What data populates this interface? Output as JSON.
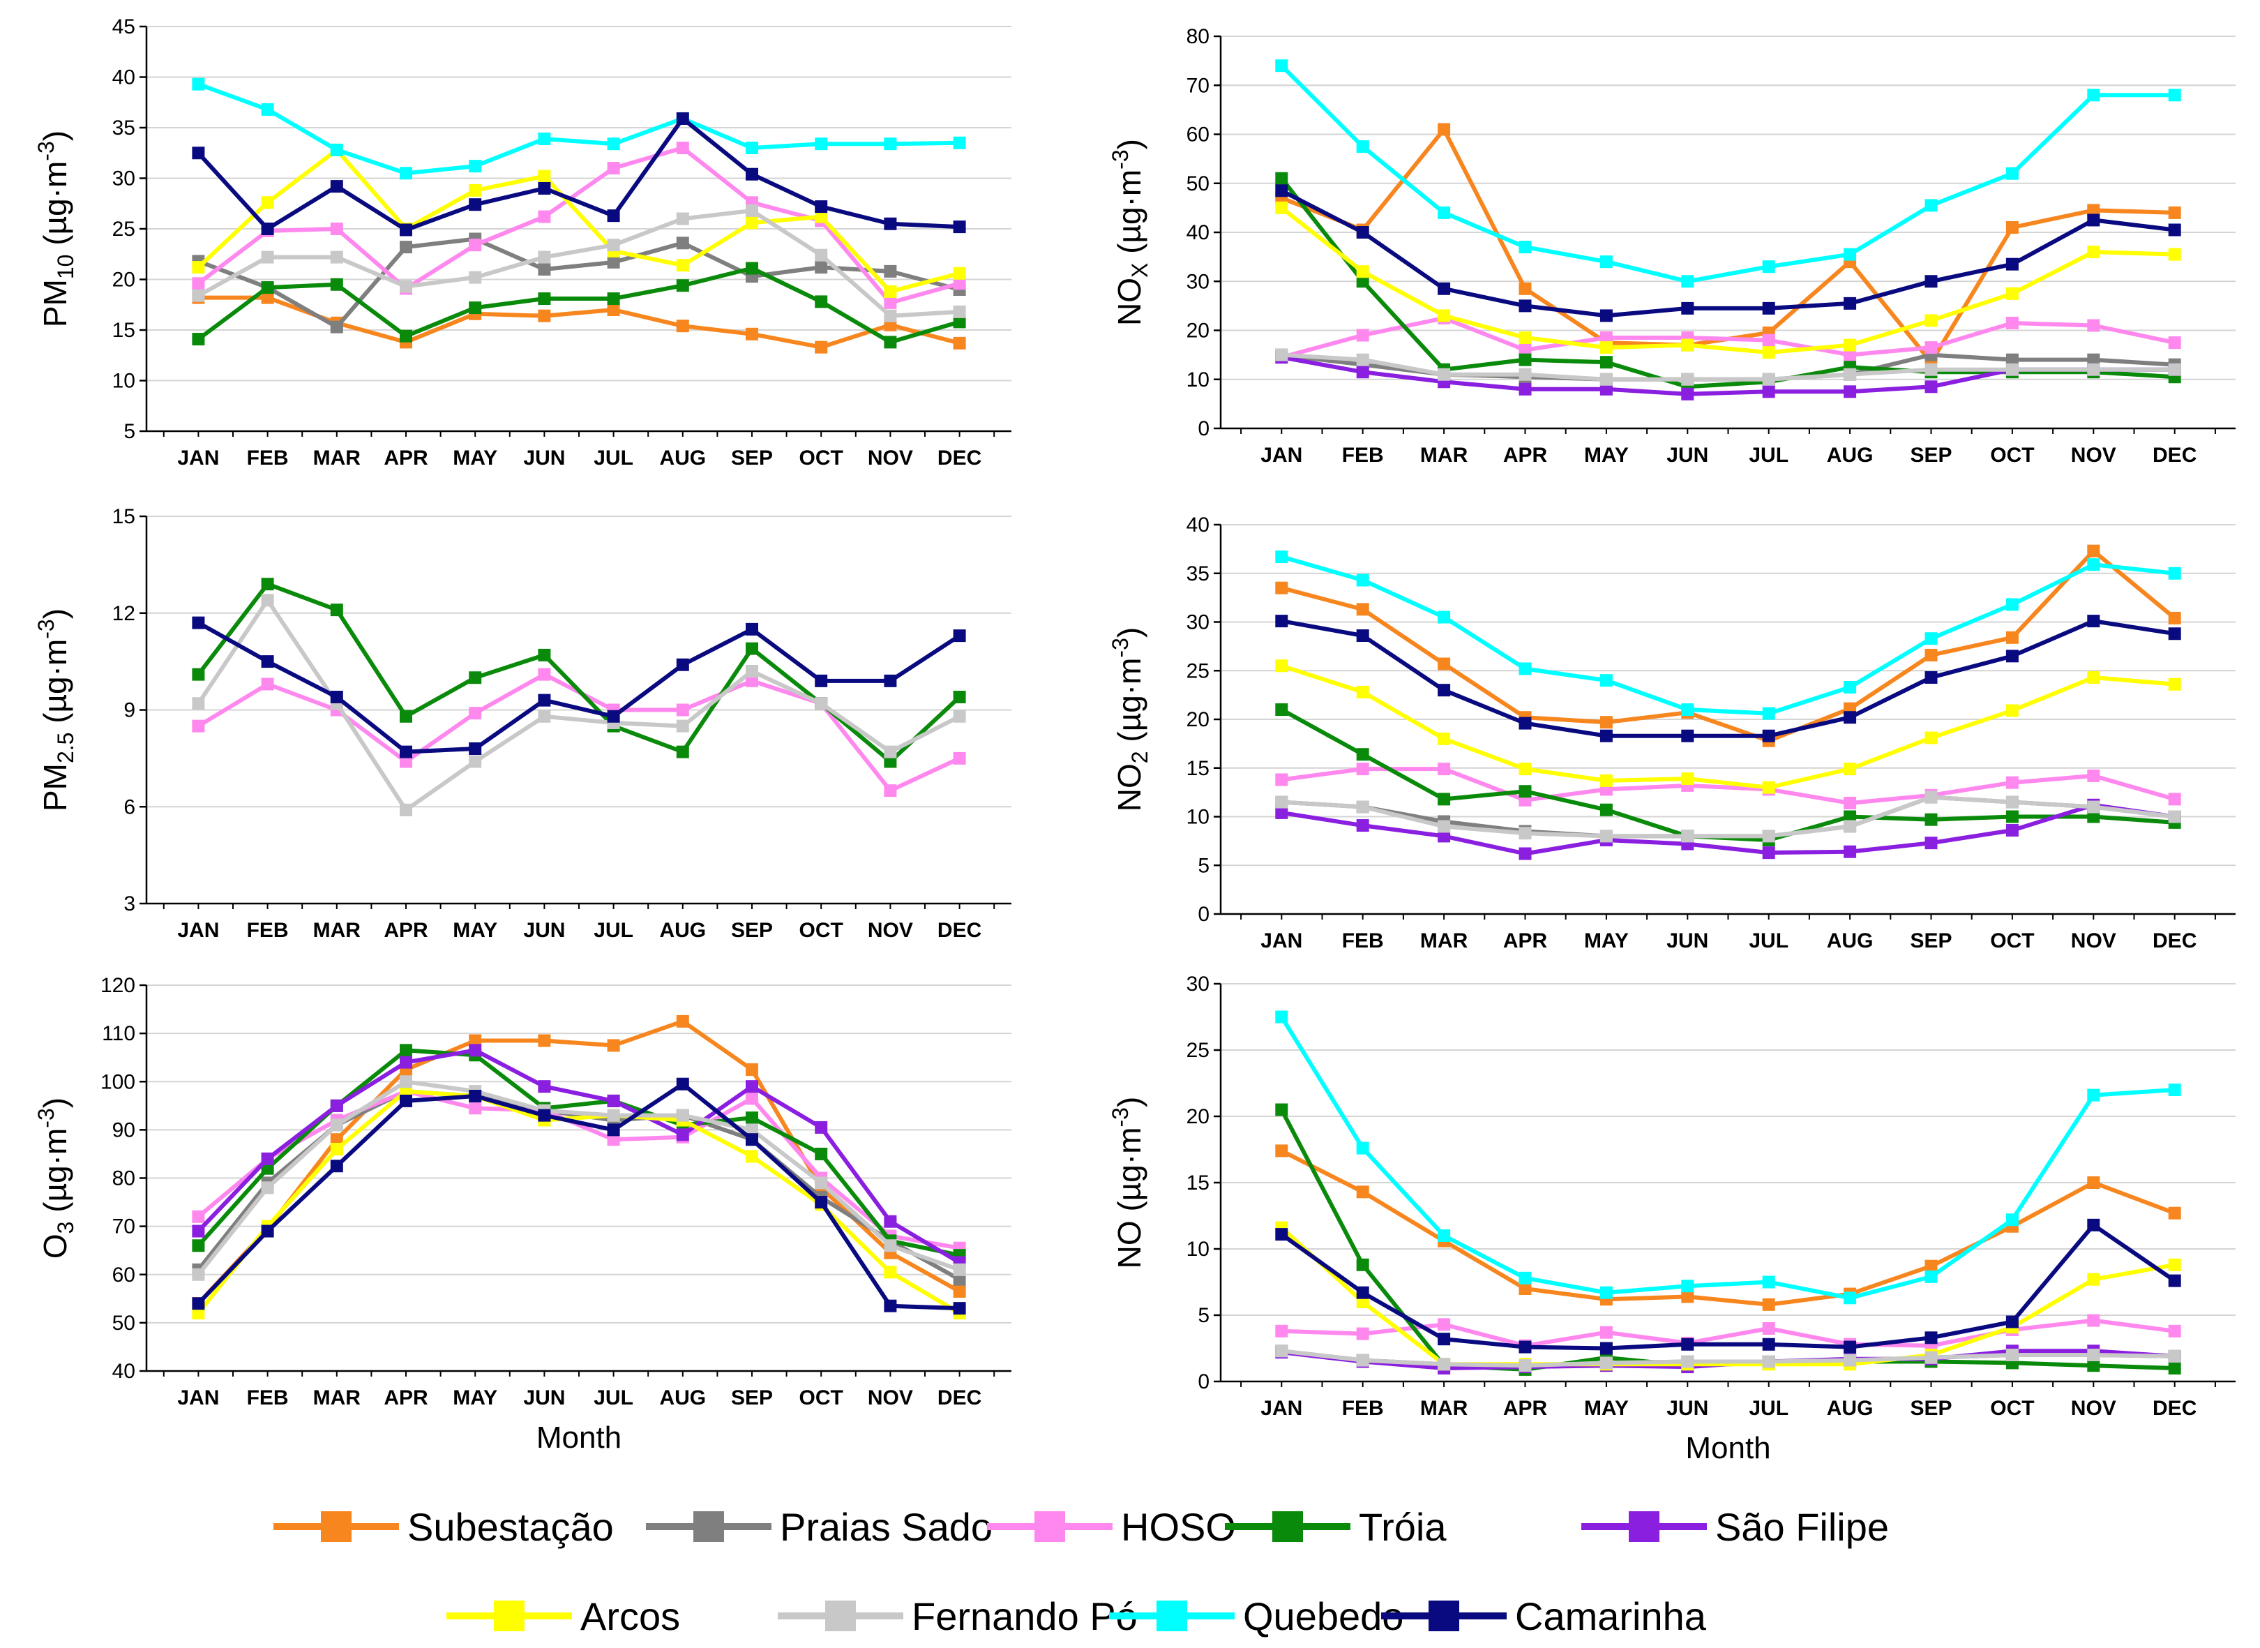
{
  "series_styles": [
    {
      "name": "Subestação",
      "color": "#F7861E"
    },
    {
      "name": "Praias Sado",
      "color": "#7F7F7F"
    },
    {
      "name": "HOSO",
      "color": "#FF88EE"
    },
    {
      "name": "Tróia",
      "color": "#0A8A0A"
    },
    {
      "name": "São Filipe",
      "color": "#8A1FE0"
    },
    {
      "name": "Arcos",
      "color": "#FFFF00"
    },
    {
      "name": "Fernando Pó",
      "color": "#C8C8C8"
    },
    {
      "name": "Quebedo",
      "color": "#00FFFF"
    },
    {
      "name": "Camarinha",
      "color": "#0A0A80"
    }
  ],
  "legend": {
    "items": [
      "Subestação",
      "Praias Sado",
      "HOSO",
      "Tróia",
      "São Filipe",
      "Arcos",
      "Fernando Pó",
      "Quebedo",
      "Camarinha"
    ]
  },
  "chart_data": [
    {
      "id": "pm10",
      "type": "line",
      "ylabel": {
        "main": "PM",
        "sub": "10",
        "unit": " (µg·m",
        "sup": "-3",
        "close": ")"
      },
      "xlabel": "",
      "categories": [
        "JAN",
        "FEB",
        "MAR",
        "APR",
        "MAY",
        "JUN",
        "JUL",
        "AUG",
        "SEP",
        "OCT",
        "NOV",
        "DEC"
      ],
      "ylim": [
        5,
        45
      ],
      "yticks": [
        5,
        10,
        15,
        20,
        25,
        30,
        35,
        40,
        45
      ],
      "series": [
        {
          "name": "Subestação",
          "values": [
            18.2,
            18.2,
            15.7,
            13.8,
            16.6,
            16.4,
            17.0,
            15.4,
            14.6,
            13.3,
            15.5,
            13.7
          ]
        },
        {
          "name": "Praias Sado",
          "values": [
            21.8,
            19.2,
            15.3,
            23.2,
            24.0,
            21.0,
            21.7,
            23.6,
            20.3,
            21.2,
            20.8,
            19.0
          ]
        },
        {
          "name": "HOSO",
          "values": [
            19.6,
            24.8,
            25.0,
            19.1,
            23.4,
            26.2,
            31.0,
            33.0,
            27.6,
            25.8,
            17.7,
            19.6
          ]
        },
        {
          "name": "Tróia",
          "values": [
            14.1,
            19.2,
            19.5,
            14.4,
            17.2,
            18.1,
            18.1,
            19.4,
            21.1,
            17.8,
            13.8,
            15.8
          ]
        },
        {
          "name": "Arcos",
          "values": [
            21.2,
            27.6,
            32.8,
            25.0,
            28.8,
            30.2,
            22.8,
            21.4,
            25.6,
            26.2,
            18.8,
            20.6
          ]
        },
        {
          "name": "Fernando Pó",
          "values": [
            18.4,
            22.2,
            22.2,
            19.3,
            20.2,
            22.2,
            23.4,
            26.0,
            26.8,
            22.4,
            16.4,
            16.8
          ]
        },
        {
          "name": "Quebedo",
          "values": [
            39.3,
            36.8,
            32.8,
            30.5,
            31.2,
            33.9,
            33.4,
            35.9,
            33.0,
            33.4,
            33.4,
            33.5
          ]
        },
        {
          "name": "Camarinha",
          "values": [
            32.5,
            25.0,
            29.2,
            24.9,
            27.4,
            29.0,
            26.3,
            35.9,
            30.4,
            27.2,
            25.5,
            25.2
          ]
        }
      ]
    },
    {
      "id": "nox",
      "type": "line",
      "ylabel": {
        "main": "NO",
        "sub": "X",
        "unit": " (µg·m",
        "sup": "-3",
        "close": ")"
      },
      "xlabel": "",
      "categories": [
        "JAN",
        "FEB",
        "MAR",
        "APR",
        "MAY",
        "JUN",
        "JUL",
        "AUG",
        "SEP",
        "OCT",
        "NOV",
        "DEC"
      ],
      "ylim": [
        0,
        80
      ],
      "yticks": [
        0,
        10,
        20,
        30,
        40,
        50,
        60,
        70,
        80
      ],
      "series": [
        {
          "name": "Subestação",
          "values": [
            47.0,
            40.5,
            61.0,
            28.5,
            17.5,
            17.0,
            19.5,
            34.0,
            13.5,
            41.0,
            44.5,
            44.0
          ]
        },
        {
          "name": "Praias Sado",
          "values": [
            15.0,
            13.0,
            11.0,
            10.5,
            10.0,
            10.0,
            10.0,
            11.0,
            15.0,
            14.0,
            14.0,
            13.0
          ]
        },
        {
          "name": "HOSO",
          "values": [
            14.5,
            19.0,
            22.5,
            16.0,
            18.5,
            18.5,
            18.0,
            15.0,
            16.5,
            21.5,
            21.0,
            17.5
          ]
        },
        {
          "name": "Tróia",
          "values": [
            51.0,
            30.0,
            12.0,
            14.0,
            13.5,
            8.5,
            9.5,
            12.5,
            11.5,
            11.5,
            11.5,
            10.5
          ]
        },
        {
          "name": "São Filipe",
          "values": [
            14.5,
            11.5,
            9.5,
            8.0,
            8.0,
            7.0,
            7.5,
            7.5,
            8.5,
            12.0,
            12.0,
            12.0
          ]
        },
        {
          "name": "Arcos",
          "values": [
            45.0,
            32.0,
            23.0,
            18.5,
            16.5,
            17.0,
            15.5,
            17.0,
            22.0,
            27.5,
            36.0,
            35.5
          ]
        },
        {
          "name": "Fernando Pó",
          "values": [
            15.0,
            14.0,
            11.0,
            11.0,
            10.0,
            10.0,
            10.0,
            11.0,
            12.0,
            12.0,
            12.0,
            12.0
          ]
        },
        {
          "name": "Quebedo",
          "values": [
            74.0,
            57.5,
            44.0,
            37.0,
            34.0,
            30.0,
            33.0,
            35.5,
            45.5,
            52.0,
            68.0,
            68.0
          ]
        },
        {
          "name": "Camarinha",
          "values": [
            48.5,
            40.0,
            28.5,
            25.0,
            23.0,
            24.5,
            24.5,
            25.5,
            30.0,
            33.5,
            42.5,
            40.5
          ]
        }
      ]
    },
    {
      "id": "pm25",
      "type": "line",
      "ylabel": {
        "main": "PM",
        "sub": "2.5",
        "unit": " (µg·m",
        "sup": "-3",
        "close": ")"
      },
      "xlabel": "",
      "categories": [
        "JAN",
        "FEB",
        "MAR",
        "APR",
        "MAY",
        "JUN",
        "JUL",
        "AUG",
        "SEP",
        "OCT",
        "NOV",
        "DEC"
      ],
      "ylim": [
        3,
        15
      ],
      "yticks": [
        3,
        6,
        9,
        12,
        15
      ],
      "series": [
        {
          "name": "HOSO",
          "values": [
            8.5,
            9.8,
            9.0,
            7.4,
            8.9,
            10.1,
            9.0,
            9.0,
            9.9,
            9.2,
            6.5,
            7.5
          ]
        },
        {
          "name": "Tróia",
          "values": [
            10.1,
            12.9,
            12.1,
            8.8,
            10.0,
            10.7,
            8.5,
            7.7,
            10.9,
            9.2,
            7.4,
            9.4
          ]
        },
        {
          "name": "Fernando Pó",
          "values": [
            9.2,
            12.4,
            9.2,
            5.9,
            7.4,
            8.8,
            8.6,
            8.5,
            10.2,
            9.2,
            7.7,
            8.8
          ]
        },
        {
          "name": "Camarinha",
          "values": [
            11.7,
            10.5,
            9.4,
            7.7,
            7.8,
            9.3,
            8.8,
            10.4,
            11.5,
            9.9,
            9.9,
            11.3
          ]
        }
      ]
    },
    {
      "id": "no2",
      "type": "line",
      "ylabel": {
        "main": "NO",
        "sub": "2",
        "unit": " (µg·m",
        "sup": "-3",
        "close": ")"
      },
      "xlabel": "",
      "categories": [
        "JAN",
        "FEB",
        "MAR",
        "APR",
        "MAY",
        "JUN",
        "JUL",
        "AUG",
        "SEP",
        "OCT",
        "NOV",
        "DEC"
      ],
      "ylim": [
        0,
        40
      ],
      "yticks": [
        0,
        5,
        10,
        15,
        20,
        25,
        30,
        35,
        40
      ],
      "series": [
        {
          "name": "Subestação",
          "values": [
            33.5,
            31.3,
            25.7,
            20.2,
            19.7,
            20.7,
            17.8,
            21.1,
            26.6,
            28.4,
            37.3,
            30.4
          ]
        },
        {
          "name": "Praias Sado",
          "values": [
            11.5,
            11.0,
            9.5,
            8.5,
            8.0,
            8.0,
            8.0,
            9.0,
            12.0,
            11.5,
            11.0,
            10.0
          ]
        },
        {
          "name": "HOSO",
          "values": [
            13.8,
            14.9,
            14.9,
            11.7,
            12.8,
            13.2,
            12.8,
            11.4,
            12.2,
            13.5,
            14.2,
            11.8
          ]
        },
        {
          "name": "Tróia",
          "values": [
            21.0,
            16.4,
            11.8,
            12.6,
            10.7,
            8.0,
            7.6,
            10.0,
            9.7,
            10.0,
            10.0,
            9.4
          ]
        },
        {
          "name": "São Filipe",
          "values": [
            10.4,
            9.1,
            8.0,
            6.2,
            7.6,
            7.2,
            6.3,
            6.4,
            7.3,
            8.6,
            11.2,
            10.0
          ]
        },
        {
          "name": "Arcos",
          "values": [
            25.5,
            22.8,
            18.0,
            14.9,
            13.7,
            13.9,
            13.0,
            14.9,
            18.1,
            20.9,
            24.3,
            23.6
          ]
        },
        {
          "name": "Fernando Pó",
          "values": [
            11.5,
            11.0,
            9.0,
            8.3,
            8.0,
            8.0,
            8.0,
            9.0,
            12.0,
            11.5,
            11.0,
            10.0
          ]
        },
        {
          "name": "Quebedo",
          "values": [
            36.7,
            34.3,
            30.5,
            25.2,
            24.0,
            21.0,
            20.6,
            23.3,
            28.3,
            31.8,
            35.9,
            35.0
          ]
        },
        {
          "name": "Camarinha",
          "values": [
            30.1,
            28.6,
            23.0,
            19.6,
            18.3,
            18.3,
            18.3,
            20.2,
            24.3,
            26.5,
            30.1,
            28.8
          ]
        }
      ]
    },
    {
      "id": "o3",
      "type": "line",
      "ylabel": {
        "main": "O",
        "sub": "3",
        "unit": " (µg·m",
        "sup": "-3",
        "close": ")"
      },
      "xlabel": "Month",
      "categories": [
        "JAN",
        "FEB",
        "MAR",
        "APR",
        "MAY",
        "JUN",
        "JUL",
        "AUG",
        "SEP",
        "OCT",
        "NOV",
        "DEC"
      ],
      "ylim": [
        40,
        120
      ],
      "yticks": [
        40,
        50,
        60,
        70,
        80,
        90,
        100,
        110,
        120
      ],
      "series": [
        {
          "name": "Subestação",
          "values": [
            54,
            69.5,
            88,
            102.5,
            108.5,
            108.5,
            107.5,
            112.5,
            102.5,
            78,
            64.5,
            56.5
          ]
        },
        {
          "name": "Praias Sado",
          "values": [
            61,
            79,
            91,
            98,
            97,
            94,
            92,
            93,
            88,
            76,
            67,
            59
          ]
        },
        {
          "name": "HOSO",
          "values": [
            72,
            84,
            92,
            98,
            94.5,
            94,
            88,
            88.5,
            96.5,
            80,
            68,
            65.5
          ]
        },
        {
          "name": "Tróia",
          "values": [
            66,
            82,
            95,
            106.5,
            105.5,
            94.5,
            96,
            91,
            92.5,
            85,
            67,
            64
          ]
        },
        {
          "name": "São Filipe",
          "values": [
            69,
            84,
            95,
            104,
            106.5,
            99,
            96,
            89,
            99,
            90.5,
            71,
            62.5
          ]
        },
        {
          "name": "Arcos",
          "values": [
            52,
            70,
            86,
            98,
            97,
            92,
            93,
            92,
            84.5,
            74.5,
            60.5,
            52
          ]
        },
        {
          "name": "Fernando Pó",
          "values": [
            60,
            78,
            91,
            100,
            98,
            94,
            93,
            93,
            90,
            79,
            66,
            61
          ]
        },
        {
          "name": "Camarinha",
          "values": [
            54,
            69,
            82.5,
            96,
            97,
            93,
            90,
            99.5,
            88,
            75,
            53.5,
            53
          ]
        }
      ]
    },
    {
      "id": "no",
      "type": "line",
      "ylabel": {
        "main": "NO",
        "sub": "",
        "unit": " (µg·m",
        "sup": "-3",
        "close": ")"
      },
      "xlabel": "Month",
      "categories": [
        "JAN",
        "FEB",
        "MAR",
        "APR",
        "MAY",
        "JUN",
        "JUL",
        "AUG",
        "SEP",
        "OCT",
        "NOV",
        "DEC"
      ],
      "ylim": [
        0,
        30
      ],
      "yticks": [
        0,
        5,
        10,
        15,
        20,
        25,
        30
      ],
      "series": [
        {
          "name": "Subestação",
          "values": [
            17.4,
            14.3,
            10.6,
            7.0,
            6.2,
            6.4,
            5.8,
            6.6,
            8.7,
            11.7,
            15.0,
            12.7
          ]
        },
        {
          "name": "Praias Sado",
          "values": [
            2.3,
            1.6,
            1.3,
            1.2,
            1.4,
            1.5,
            1.5,
            1.6,
            1.8,
            2.0,
            2.0,
            1.9
          ]
        },
        {
          "name": "HOSO",
          "values": [
            3.8,
            3.6,
            4.3,
            2.7,
            3.7,
            2.9,
            4.0,
            2.8,
            2.7,
            3.9,
            4.6,
            3.8
          ]
        },
        {
          "name": "Tróia",
          "values": [
            20.5,
            8.8,
            1.2,
            0.9,
            1.8,
            1.2,
            1.4,
            1.5,
            1.5,
            1.4,
            1.2,
            1.0
          ]
        },
        {
          "name": "São Filipe",
          "values": [
            2.2,
            1.5,
            1.0,
            1.1,
            1.2,
            1.1,
            1.5,
            1.7,
            1.7,
            2.3,
            2.3,
            1.9
          ]
        },
        {
          "name": "Arcos",
          "values": [
            11.6,
            6.0,
            1.3,
            1.3,
            1.3,
            1.3,
            1.3,
            1.3,
            2.0,
            4.1,
            7.7,
            8.8
          ]
        },
        {
          "name": "Fernando Pó",
          "values": [
            2.3,
            1.6,
            1.3,
            1.2,
            1.4,
            1.5,
            1.5,
            1.6,
            1.8,
            2.0,
            2.0,
            1.9
          ]
        },
        {
          "name": "Quebedo",
          "values": [
            27.5,
            17.6,
            11.0,
            7.8,
            6.7,
            7.2,
            7.5,
            6.3,
            7.9,
            12.2,
            21.6,
            22.0
          ]
        },
        {
          "name": "Camarinha",
          "values": [
            11.1,
            6.7,
            3.2,
            2.6,
            2.5,
            2.8,
            2.8,
            2.6,
            3.3,
            4.5,
            11.8,
            7.6
          ]
        }
      ]
    }
  ]
}
